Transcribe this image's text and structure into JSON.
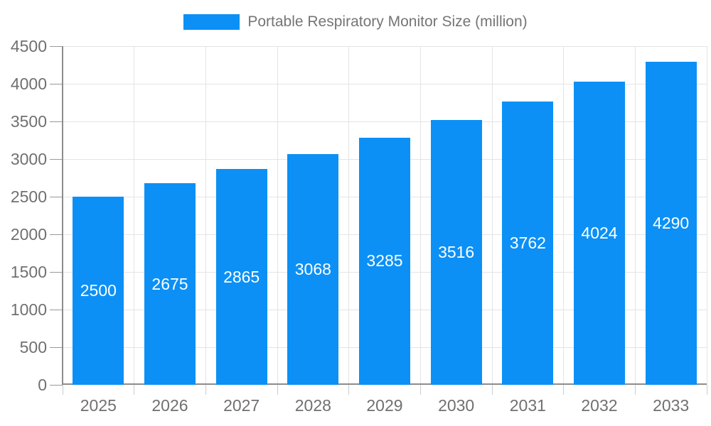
{
  "legend": {
    "label": "Portable Respiratory Monitor Size (million)"
  },
  "chart_data": {
    "type": "bar",
    "title": "Portable Respiratory Monitor Size (million)",
    "categories": [
      "2025",
      "2026",
      "2027",
      "2028",
      "2029",
      "2030",
      "2031",
      "2032",
      "2033"
    ],
    "values": [
      2500,
      2675,
      2865,
      3068,
      3285,
      3516,
      3762,
      4024,
      4290
    ],
    "value_labels": [
      "2500",
      "2675",
      "2865",
      "3068",
      "3285",
      "3516",
      "3762",
      "4024",
      "4290"
    ],
    "xlabel": "",
    "ylabel": "",
    "ylim": [
      0,
      4500
    ],
    "ytick_step": 500,
    "ytick_labels": [
      "0",
      "500",
      "1000",
      "1500",
      "2000",
      "2500",
      "3000",
      "3500",
      "4000",
      "4500"
    ],
    "grid": true,
    "legend_position": "top-center",
    "colors": {
      "bar": "#0c90f5",
      "value_label": "#ffffff",
      "axis_text": "#707070",
      "legend_text": "#757575",
      "gridline": "#e4e4e4",
      "axis_line": "#8c8c8c",
      "y_tick": "#999999",
      "x_tick": "#cccccc",
      "background": "#ffffff"
    }
  }
}
